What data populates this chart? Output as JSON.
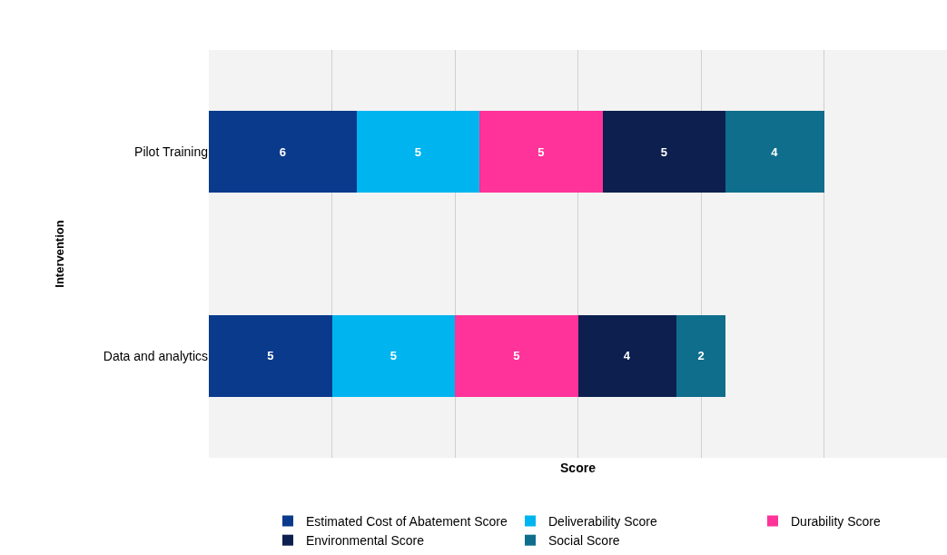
{
  "chart_data": {
    "type": "bar",
    "orientation": "horizontal",
    "stacked": true,
    "xlabel": "Score",
    "ylabel": "Intervention",
    "categories": [
      "Pilot Training",
      "Data and analytics"
    ],
    "series": [
      {
        "name": "Estimated Cost of Abatement Score",
        "color": "#0a3a8c",
        "values": [
          6,
          5
        ]
      },
      {
        "name": "Deliverability Score",
        "color": "#00b5ef",
        "values": [
          5,
          5
        ]
      },
      {
        "name": "Durability Score",
        "color": "#ff3399",
        "values": [
          5,
          5
        ]
      },
      {
        "name": "Environmental Score",
        "color": "#0c1f4f",
        "values": [
          5,
          4
        ]
      },
      {
        "name": "Social Score",
        "color": "#0f6e8c",
        "values": [
          4,
          2
        ]
      }
    ],
    "xlim": [
      0,
      30
    ],
    "xticks": [
      {
        "value": 0,
        "label": null
      },
      {
        "value": 5,
        "label": null
      },
      {
        "value": 10,
        "label": null
      },
      {
        "value": 15,
        "label": null
      },
      {
        "value": 20,
        "label": null
      },
      {
        "value": 25,
        "label": null
      },
      {
        "value": 30,
        "label": null
      }
    ],
    "tick_labels": "y",
    "grid": "x",
    "legend": "bottom",
    "data_labels": true
  }
}
